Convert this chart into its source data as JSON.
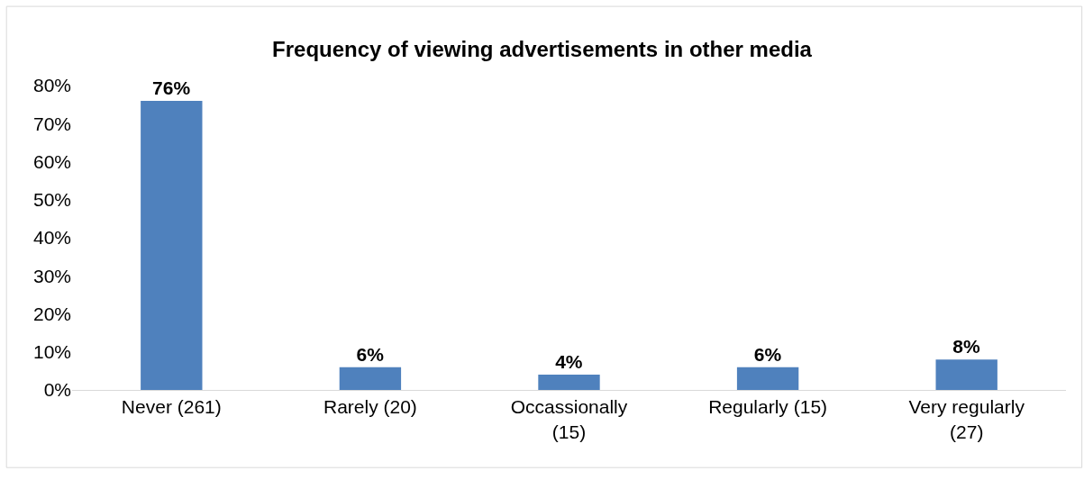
{
  "chart_data": {
    "type": "bar",
    "title": "Frequency of viewing advertisements in other media",
    "categories": [
      "Never (261)",
      "Rarely (20)",
      "Occassionally (15)",
      "Regularly (15)",
      "Very regularly (27)"
    ],
    "values": [
      76,
      6,
      4,
      6,
      8
    ],
    "value_labels": [
      "76%",
      "6%",
      "4%",
      "6%",
      "8%"
    ],
    "color": "#4f81bd",
    "ylim": [
      0,
      80
    ],
    "yticks": [
      {
        "value": 0,
        "label": "0%"
      },
      {
        "value": 10,
        "label": "10%"
      },
      {
        "value": 20,
        "label": "20%"
      },
      {
        "value": 30,
        "label": "30%"
      },
      {
        "value": 40,
        "label": "40%"
      },
      {
        "value": 50,
        "label": "50%"
      },
      {
        "value": 60,
        "label": "60%"
      },
      {
        "value": 70,
        "label": "70%"
      },
      {
        "value": 80,
        "label": "80%"
      }
    ],
    "legend": false
  }
}
